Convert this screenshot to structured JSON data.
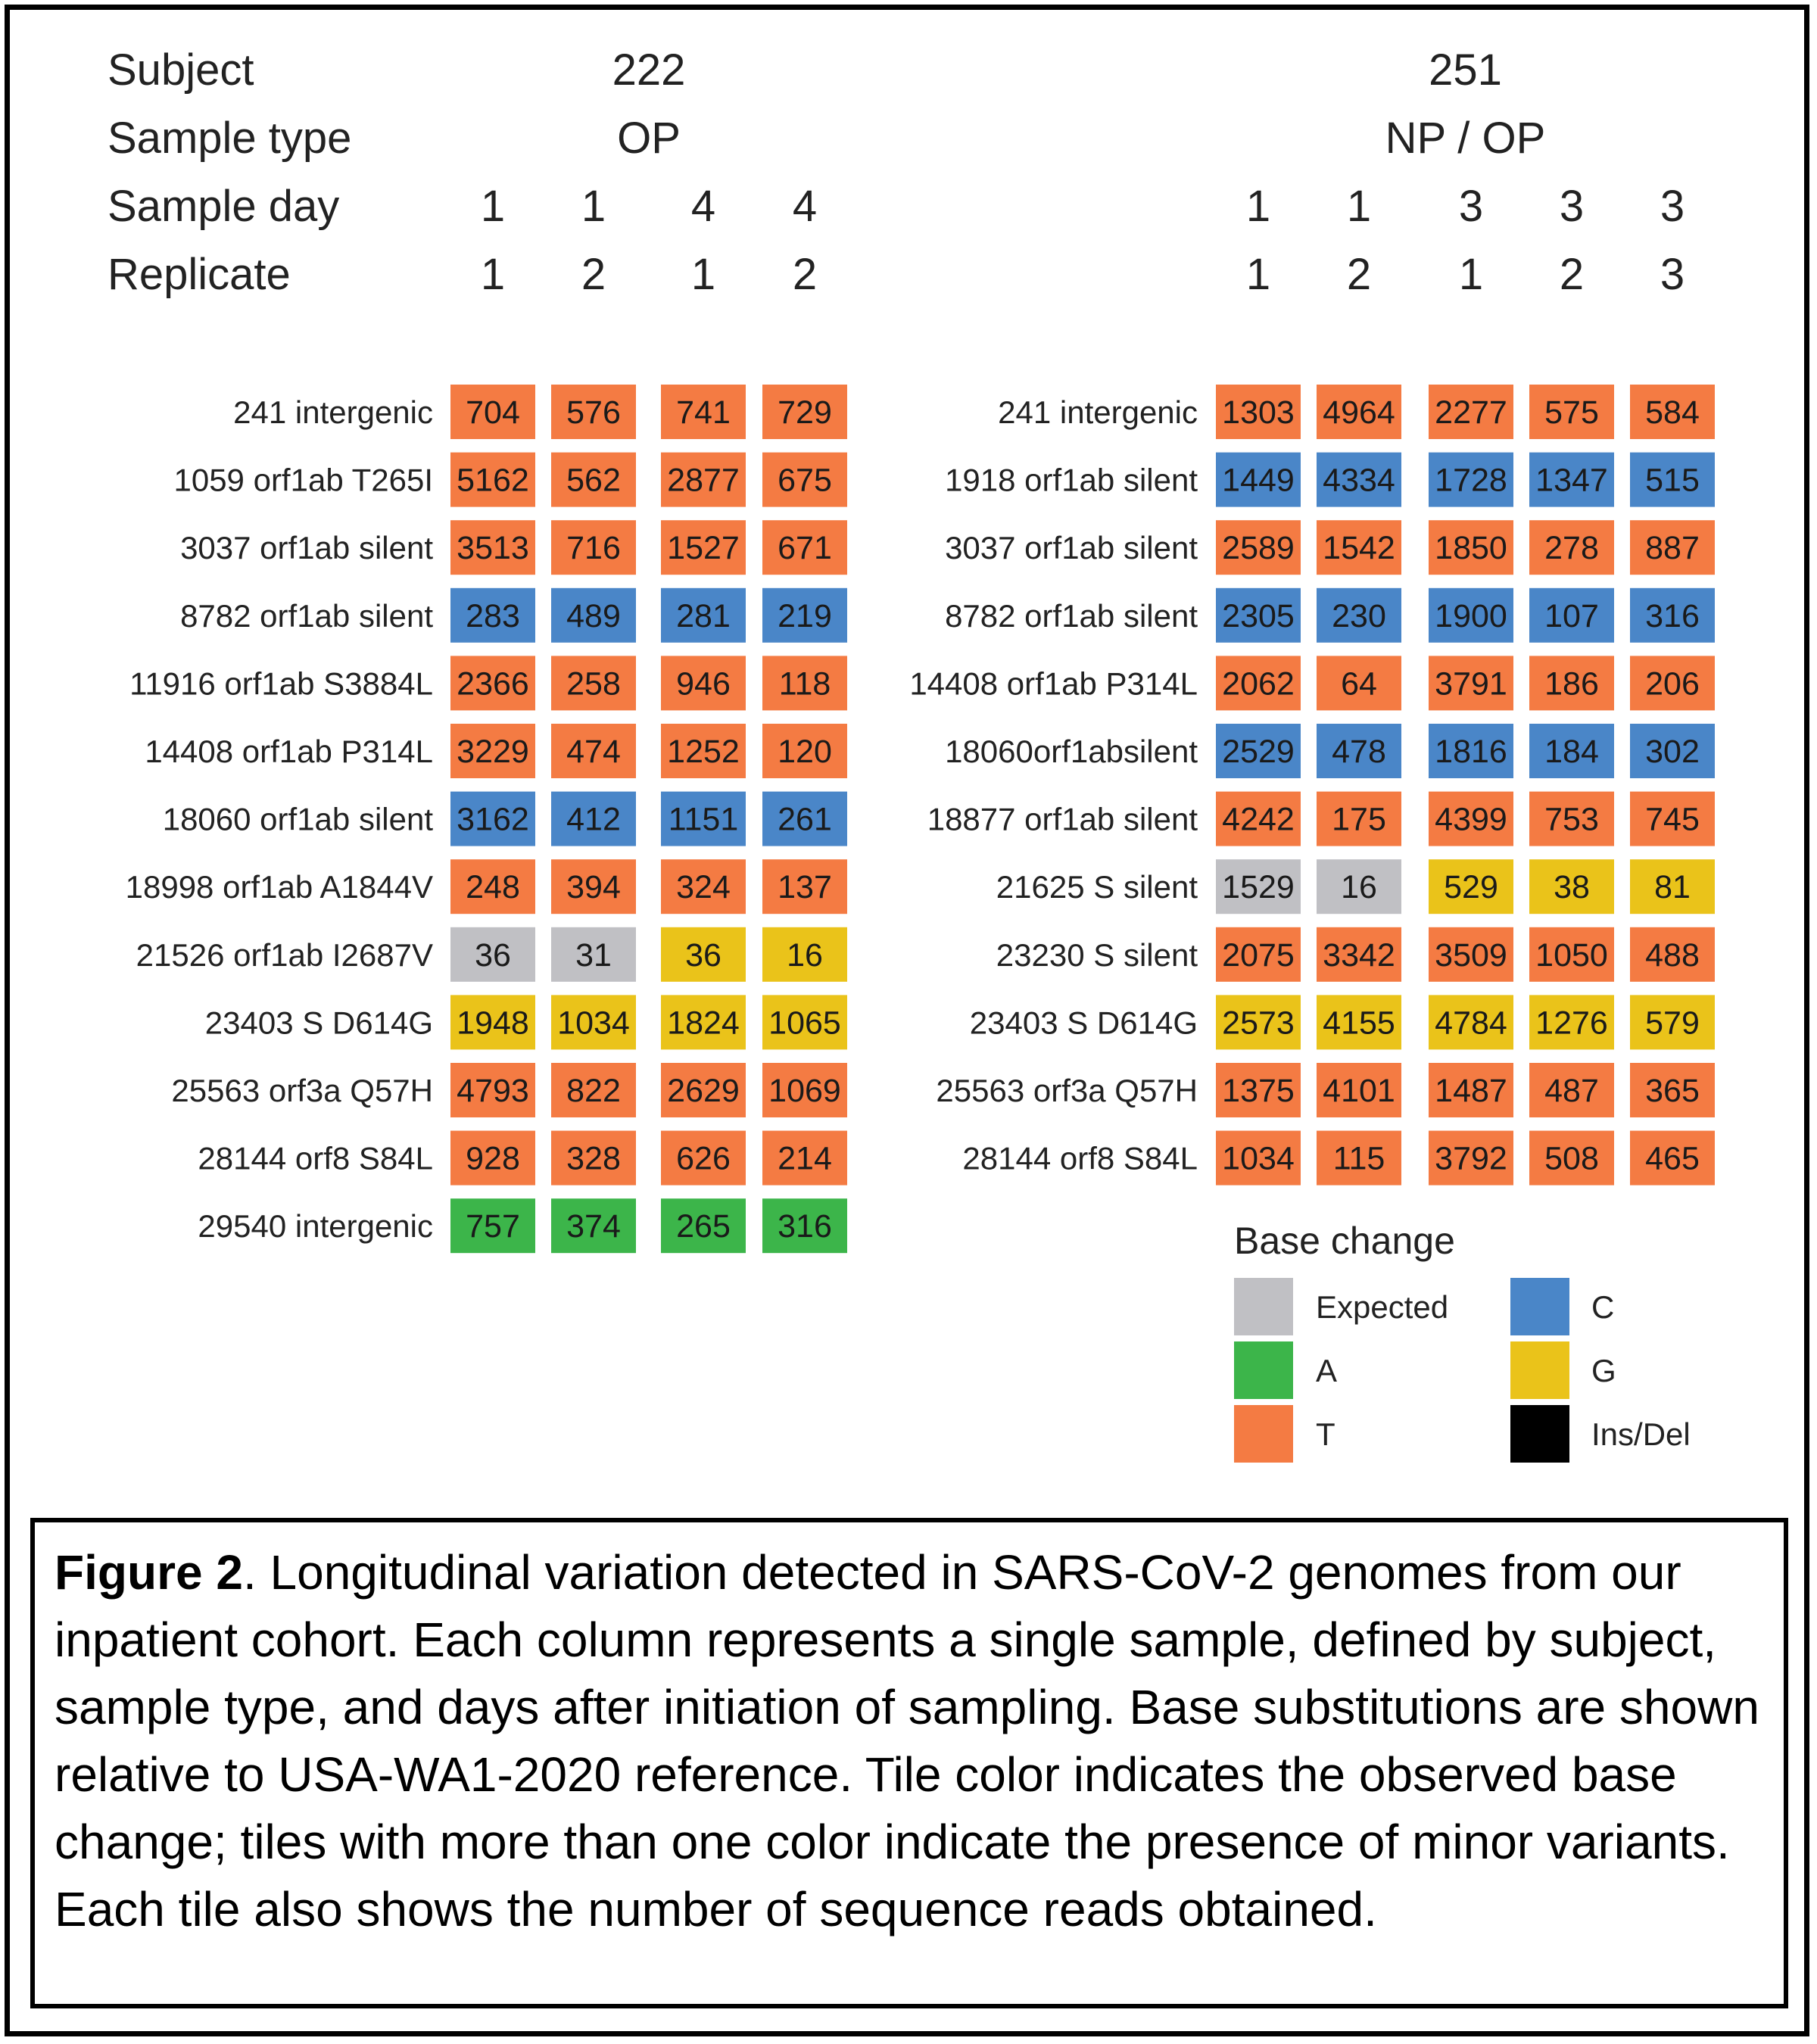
{
  "header_labels": [
    "Subject",
    "Sample type",
    "Sample day",
    "Replicate"
  ],
  "chart_data": [
    {
      "type": "heatmap",
      "subject": "222",
      "sample_type": "OP",
      "sample_days": [
        "1",
        "1",
        "4",
        "4"
      ],
      "replicates": [
        "1",
        "2",
        "1",
        "2"
      ],
      "rows": [
        "241 intergenic",
        "1059 orf1ab T265I",
        "3037 orf1ab silent",
        "8782 orf1ab silent",
        "11916 orf1ab S3884L",
        "14408 orf1ab P314L",
        "18060 orf1ab silent",
        "18998 orf1ab A1844V",
        "21526 orf1ab I2687V",
        "23403 S D614G",
        "25563 orf3a Q57H",
        "28144 orf8 S84L",
        "29540 intergenic"
      ],
      "base_change": [
        [
          "T",
          "T",
          "T",
          "T"
        ],
        [
          "T",
          "T",
          "T",
          "T"
        ],
        [
          "T",
          "T",
          "T",
          "T"
        ],
        [
          "C",
          "C",
          "C",
          "C"
        ],
        [
          "T",
          "T",
          "T",
          "T"
        ],
        [
          "T",
          "T",
          "T",
          "T"
        ],
        [
          "C",
          "C",
          "C",
          "C"
        ],
        [
          "T",
          "T",
          "T",
          "T"
        ],
        [
          "Expected",
          "Expected",
          "G",
          "G"
        ],
        [
          "G",
          "G",
          "G",
          "G"
        ],
        [
          "T",
          "T",
          "T",
          "T"
        ],
        [
          "T",
          "T",
          "T",
          "T"
        ],
        [
          "A",
          "A",
          "A",
          "A"
        ]
      ],
      "reads": [
        [
          704,
          576,
          741,
          729
        ],
        [
          5162,
          562,
          2877,
          675
        ],
        [
          3513,
          716,
          1527,
          671
        ],
        [
          283,
          489,
          281,
          219
        ],
        [
          2366,
          258,
          946,
          118
        ],
        [
          3229,
          474,
          1252,
          120
        ],
        [
          3162,
          412,
          1151,
          261
        ],
        [
          248,
          394,
          324,
          137
        ],
        [
          36,
          31,
          36,
          16
        ],
        [
          1948,
          1034,
          1824,
          1065
        ],
        [
          4793,
          822,
          2629,
          1069
        ],
        [
          928,
          328,
          626,
          214
        ],
        [
          757,
          374,
          265,
          316
        ]
      ]
    },
    {
      "type": "heatmap",
      "subject": "251",
      "sample_type": "NP / OP",
      "sample_days": [
        "1",
        "1",
        "3",
        "3",
        "3"
      ],
      "replicates": [
        "1",
        "2",
        "1",
        "2",
        "3"
      ],
      "rows": [
        "241 intergenic",
        "1918 orf1ab silent",
        "3037 orf1ab silent",
        "8782 orf1ab silent",
        "14408 orf1ab P314L",
        "18060orf1absilent",
        "18877 orf1ab silent",
        "21625 S silent",
        "23230 S silent",
        "23403 S D614G",
        "25563 orf3a Q57H",
        "28144 orf8 S84L"
      ],
      "base_change": [
        [
          "T",
          "T",
          "T",
          "T",
          "T"
        ],
        [
          "C",
          "C",
          "C",
          "C",
          "C"
        ],
        [
          "T",
          "T",
          "T",
          "T",
          "T"
        ],
        [
          "C",
          "C",
          "C",
          "C",
          "C"
        ],
        [
          "T",
          "T",
          "T",
          "T",
          "T"
        ],
        [
          "C",
          "C",
          "C",
          "C",
          "C"
        ],
        [
          "T",
          "T",
          "T",
          "T",
          "T"
        ],
        [
          "Expected",
          "Expected",
          "G",
          "G",
          "G"
        ],
        [
          "T",
          "T",
          "T",
          "T",
          "T"
        ],
        [
          "G",
          "G",
          "G",
          "G",
          "G"
        ],
        [
          "T",
          "T",
          "T",
          "T",
          "T"
        ],
        [
          "T",
          "T",
          "T",
          "T",
          "T"
        ]
      ],
      "reads": [
        [
          1303,
          4964,
          2277,
          575,
          584
        ],
        [
          1449,
          4334,
          1728,
          1347,
          515
        ],
        [
          2589,
          1542,
          1850,
          278,
          887
        ],
        [
          2305,
          230,
          1900,
          107,
          316
        ],
        [
          2062,
          64,
          3791,
          186,
          206
        ],
        [
          2529,
          478,
          1816,
          184,
          302
        ],
        [
          4242,
          175,
          4399,
          753,
          745
        ],
        [
          1529,
          16,
          529,
          38,
          81
        ],
        [
          2075,
          3342,
          3509,
          1050,
          488
        ],
        [
          2573,
          4155,
          4784,
          1276,
          579
        ],
        [
          1375,
          4101,
          1487,
          487,
          365
        ],
        [
          1034,
          115,
          3792,
          508,
          465
        ]
      ]
    }
  ],
  "legend": {
    "title": "Base change",
    "items": [
      {
        "label": "Expected",
        "color": "#c0c0c4"
      },
      {
        "label": "A",
        "color": "#3cb54a"
      },
      {
        "label": "T",
        "color": "#f47b43"
      },
      {
        "label": "C",
        "color": "#4a86c8"
      },
      {
        "label": "G",
        "color": "#eac31a"
      },
      {
        "label": "Ins/Del",
        "color": "#000000"
      }
    ]
  },
  "caption": {
    "label": "Figure 2",
    "text": ". Longitudinal variation detected in SARS-CoV-2 genomes from our inpatient cohort. Each column represents a single sample, defined by subject, sample type, and days after initiation of sampling. Base substitutions are shown relative to USA-WA1-2020 reference. Tile color indicates the observed base change; tiles with more than one color indicate the presence of minor variants. Each tile also shows the number of sequence reads obtained."
  }
}
